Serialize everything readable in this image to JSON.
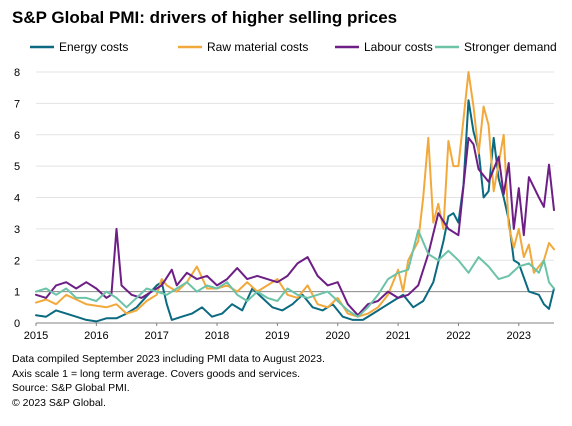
{
  "chart_data": {
    "type": "line",
    "title": "S&P Global PMI: drivers of higher selling prices",
    "xlabel": "",
    "ylabel": "",
    "xlim": [
      "2015-01",
      "2023-08"
    ],
    "ylim": [
      0,
      8
    ],
    "y_ticks": [
      "0",
      "1",
      "2",
      "3",
      "4",
      "5",
      "6",
      "7",
      "8"
    ],
    "x_ticks": [
      "2015",
      "2016",
      "2017",
      "2018",
      "2019",
      "2020",
      "2021",
      "2022",
      "2023"
    ],
    "grid": "horizontal",
    "reference_line_y": 1,
    "legend_position": "top",
    "series": [
      {
        "name": "Energy costs",
        "color": "#0b6a80",
        "points": [
          [
            "2015-01",
            0.25
          ],
          [
            "2015-03",
            0.2
          ],
          [
            "2015-05",
            0.4
          ],
          [
            "2015-07",
            0.3
          ],
          [
            "2015-09",
            0.2
          ],
          [
            "2015-11",
            0.1
          ],
          [
            "2016-01",
            0.05
          ],
          [
            "2016-03",
            0.15
          ],
          [
            "2016-05",
            0.15
          ],
          [
            "2016-07",
            0.3
          ],
          [
            "2016-09",
            0.5
          ],
          [
            "2016-11",
            0.85
          ],
          [
            "2017-01",
            1.2
          ],
          [
            "2017-02",
            1.3
          ],
          [
            "2017-03",
            0.6
          ],
          [
            "2017-04",
            0.1
          ],
          [
            "2017-06",
            0.2
          ],
          [
            "2017-08",
            0.3
          ],
          [
            "2017-10",
            0.5
          ],
          [
            "2017-12",
            0.2
          ],
          [
            "2018-02",
            0.3
          ],
          [
            "2018-04",
            0.6
          ],
          [
            "2018-06",
            0.4
          ],
          [
            "2018-08",
            1.1
          ],
          [
            "2018-10",
            0.8
          ],
          [
            "2018-12",
            0.5
          ],
          [
            "2019-02",
            0.4
          ],
          [
            "2019-04",
            0.6
          ],
          [
            "2019-06",
            0.9
          ],
          [
            "2019-08",
            0.5
          ],
          [
            "2019-10",
            0.4
          ],
          [
            "2019-12",
            0.6
          ],
          [
            "2020-02",
            0.2
          ],
          [
            "2020-04",
            0.1
          ],
          [
            "2020-06",
            0.1
          ],
          [
            "2020-08",
            0.3
          ],
          [
            "2020-10",
            0.5
          ],
          [
            "2020-12",
            0.7
          ],
          [
            "2021-02",
            0.9
          ],
          [
            "2021-04",
            0.5
          ],
          [
            "2021-06",
            0.7
          ],
          [
            "2021-08",
            1.3
          ],
          [
            "2021-10",
            2.6
          ],
          [
            "2021-11",
            3.4
          ],
          [
            "2021-12",
            3.5
          ],
          [
            "2022-01",
            3.2
          ],
          [
            "2022-02",
            4.4
          ],
          [
            "2022-03",
            7.1
          ],
          [
            "2022-04",
            6.1
          ],
          [
            "2022-05",
            5.5
          ],
          [
            "2022-06",
            4.0
          ],
          [
            "2022-07",
            4.2
          ],
          [
            "2022-08",
            5.9
          ],
          [
            "2022-09",
            4.6
          ],
          [
            "2022-10",
            4.0
          ],
          [
            "2022-11",
            3.3
          ],
          [
            "2022-12",
            2.0
          ],
          [
            "2023-01",
            1.9
          ],
          [
            "2023-03",
            1.0
          ],
          [
            "2023-05",
            0.9
          ],
          [
            "2023-06",
            0.6
          ],
          [
            "2023-07",
            0.45
          ],
          [
            "2023-08",
            1.1
          ]
        ]
      },
      {
        "name": "Raw material costs",
        "color": "#f2a93b",
        "points": [
          [
            "2015-01",
            0.65
          ],
          [
            "2015-03",
            0.75
          ],
          [
            "2015-05",
            0.6
          ],
          [
            "2015-07",
            0.9
          ],
          [
            "2015-09",
            0.75
          ],
          [
            "2015-11",
            0.6
          ],
          [
            "2016-01",
            0.55
          ],
          [
            "2016-03",
            0.5
          ],
          [
            "2016-05",
            0.6
          ],
          [
            "2016-07",
            0.3
          ],
          [
            "2016-09",
            0.4
          ],
          [
            "2016-11",
            0.7
          ],
          [
            "2017-01",
            0.9
          ],
          [
            "2017-02",
            1.4
          ],
          [
            "2017-03",
            1.2
          ],
          [
            "2017-05",
            1.0
          ],
          [
            "2017-07",
            1.3
          ],
          [
            "2017-09",
            1.8
          ],
          [
            "2017-11",
            1.1
          ],
          [
            "2018-01",
            1.1
          ],
          [
            "2018-03",
            1.2
          ],
          [
            "2018-05",
            1.0
          ],
          [
            "2018-07",
            1.3
          ],
          [
            "2018-09",
            1.0
          ],
          [
            "2018-11",
            1.2
          ],
          [
            "2019-01",
            1.4
          ],
          [
            "2019-03",
            0.9
          ],
          [
            "2019-05",
            0.8
          ],
          [
            "2019-07",
            1.2
          ],
          [
            "2019-09",
            0.6
          ],
          [
            "2019-11",
            0.5
          ],
          [
            "2020-01",
            0.8
          ],
          [
            "2020-03",
            0.3
          ],
          [
            "2020-05",
            0.2
          ],
          [
            "2020-07",
            0.3
          ],
          [
            "2020-09",
            0.5
          ],
          [
            "2020-11",
            0.9
          ],
          [
            "2021-01",
            1.7
          ],
          [
            "2021-02",
            1.0
          ],
          [
            "2021-03",
            2.0
          ],
          [
            "2021-05",
            2.6
          ],
          [
            "2021-06",
            4.0
          ],
          [
            "2021-07",
            5.9
          ],
          [
            "2021-08",
            3.2
          ],
          [
            "2021-09",
            3.8
          ],
          [
            "2021-10",
            3.0
          ],
          [
            "2021-11",
            5.8
          ],
          [
            "2021-12",
            5.0
          ],
          [
            "2022-01",
            5.0
          ],
          [
            "2022-02",
            6.5
          ],
          [
            "2022-03",
            8.0
          ],
          [
            "2022-04",
            6.9
          ],
          [
            "2022-05",
            5.4
          ],
          [
            "2022-06",
            6.9
          ],
          [
            "2022-07",
            6.3
          ],
          [
            "2022-08",
            4.2
          ],
          [
            "2022-09",
            5.1
          ],
          [
            "2022-10",
            6.0
          ],
          [
            "2022-11",
            3.1
          ],
          [
            "2022-12",
            2.4
          ],
          [
            "2023-01",
            3.0
          ],
          [
            "2023-02",
            2.1
          ],
          [
            "2023-03",
            2.5
          ],
          [
            "2023-04",
            1.6
          ],
          [
            "2023-06",
            2.0
          ],
          [
            "2023-07",
            2.55
          ],
          [
            "2023-08",
            2.35
          ]
        ]
      },
      {
        "name": "Labour costs",
        "color": "#6d1f86",
        "points": [
          [
            "2015-01",
            0.9
          ],
          [
            "2015-03",
            0.8
          ],
          [
            "2015-05",
            1.2
          ],
          [
            "2015-07",
            1.3
          ],
          [
            "2015-09",
            1.1
          ],
          [
            "2015-11",
            1.3
          ],
          [
            "2016-01",
            1.1
          ],
          [
            "2016-03",
            0.8
          ],
          [
            "2016-04",
            0.9
          ],
          [
            "2016-05",
            3.0
          ],
          [
            "2016-06",
            1.2
          ],
          [
            "2016-08",
            0.9
          ],
          [
            "2016-10",
            0.8
          ],
          [
            "2016-12",
            1.0
          ],
          [
            "2017-02",
            1.2
          ],
          [
            "2017-04",
            1.7
          ],
          [
            "2017-05",
            1.2
          ],
          [
            "2017-07",
            1.6
          ],
          [
            "2017-09",
            1.4
          ],
          [
            "2017-11",
            1.5
          ],
          [
            "2018-01",
            1.2
          ],
          [
            "2018-03",
            1.4
          ],
          [
            "2018-05",
            1.75
          ],
          [
            "2018-07",
            1.4
          ],
          [
            "2018-09",
            1.5
          ],
          [
            "2018-11",
            1.4
          ],
          [
            "2019-01",
            1.3
          ],
          [
            "2019-03",
            1.5
          ],
          [
            "2019-05",
            1.9
          ],
          [
            "2019-07",
            2.1
          ],
          [
            "2019-09",
            1.5
          ],
          [
            "2019-11",
            1.2
          ],
          [
            "2020-01",
            1.3
          ],
          [
            "2020-03",
            0.6
          ],
          [
            "2020-05",
            0.25
          ],
          [
            "2020-07",
            0.6
          ],
          [
            "2020-09",
            0.7
          ],
          [
            "2020-11",
            1.0
          ],
          [
            "2021-01",
            0.8
          ],
          [
            "2021-03",
            0.9
          ],
          [
            "2021-05",
            1.2
          ],
          [
            "2021-07",
            2.2
          ],
          [
            "2021-09",
            3.5
          ],
          [
            "2021-11",
            3.0
          ],
          [
            "2022-01",
            2.8
          ],
          [
            "2022-03",
            5.9
          ],
          [
            "2022-04",
            5.7
          ],
          [
            "2022-05",
            4.9
          ],
          [
            "2022-07",
            4.5
          ],
          [
            "2022-09",
            5.3
          ],
          [
            "2022-10",
            4.1
          ],
          [
            "2022-11",
            5.1
          ],
          [
            "2022-12",
            3.0
          ],
          [
            "2023-01",
            4.3
          ],
          [
            "2023-02",
            2.8
          ],
          [
            "2023-03",
            4.65
          ],
          [
            "2023-05",
            4.0
          ],
          [
            "2023-06",
            3.7
          ],
          [
            "2023-07",
            5.05
          ],
          [
            "2023-08",
            3.6
          ]
        ]
      },
      {
        "name": "Stronger demand",
        "color": "#6cc3a8",
        "points": [
          [
            "2015-01",
            1.0
          ],
          [
            "2015-03",
            1.1
          ],
          [
            "2015-05",
            0.9
          ],
          [
            "2015-07",
            1.1
          ],
          [
            "2015-09",
            0.8
          ],
          [
            "2015-11",
            0.8
          ],
          [
            "2016-01",
            0.7
          ],
          [
            "2016-03",
            1.0
          ],
          [
            "2016-05",
            0.8
          ],
          [
            "2016-07",
            0.5
          ],
          [
            "2016-09",
            0.8
          ],
          [
            "2016-11",
            1.1
          ],
          [
            "2017-01",
            1.0
          ],
          [
            "2017-03",
            0.9
          ],
          [
            "2017-05",
            1.1
          ],
          [
            "2017-07",
            1.3
          ],
          [
            "2017-09",
            1.0
          ],
          [
            "2017-11",
            1.2
          ],
          [
            "2018-01",
            1.1
          ],
          [
            "2018-03",
            1.3
          ],
          [
            "2018-05",
            0.9
          ],
          [
            "2018-07",
            0.7
          ],
          [
            "2018-09",
            1.0
          ],
          [
            "2018-11",
            0.8
          ],
          [
            "2019-01",
            0.7
          ],
          [
            "2019-03",
            1.1
          ],
          [
            "2019-05",
            0.9
          ],
          [
            "2019-07",
            0.8
          ],
          [
            "2019-09",
            0.9
          ],
          [
            "2019-11",
            1.0
          ],
          [
            "2020-01",
            0.7
          ],
          [
            "2020-03",
            0.4
          ],
          [
            "2020-05",
            0.2
          ],
          [
            "2020-07",
            0.5
          ],
          [
            "2020-09",
            0.9
          ],
          [
            "2020-11",
            1.4
          ],
          [
            "2021-01",
            1.6
          ],
          [
            "2021-03",
            1.7
          ],
          [
            "2021-05",
            2.95
          ],
          [
            "2021-07",
            2.2
          ],
          [
            "2021-09",
            2.0
          ],
          [
            "2021-11",
            2.3
          ],
          [
            "2022-01",
            2.0
          ],
          [
            "2022-03",
            1.6
          ],
          [
            "2022-05",
            2.1
          ],
          [
            "2022-07",
            1.8
          ],
          [
            "2022-09",
            1.4
          ],
          [
            "2022-11",
            1.5
          ],
          [
            "2023-01",
            1.8
          ],
          [
            "2023-03",
            1.9
          ],
          [
            "2023-05",
            1.6
          ],
          [
            "2023-06",
            2.0
          ],
          [
            "2023-07",
            1.3
          ],
          [
            "2023-08",
            1.1
          ]
        ]
      }
    ]
  },
  "footnotes": {
    "line1": "Data compiled September 2023 including PMI data to August 2023.",
    "line2": "Axis scale 1 = long term average. Covers goods and services.",
    "source": "Source: S&P Global PMI.",
    "copyright": "© 2023 S&P Global."
  }
}
